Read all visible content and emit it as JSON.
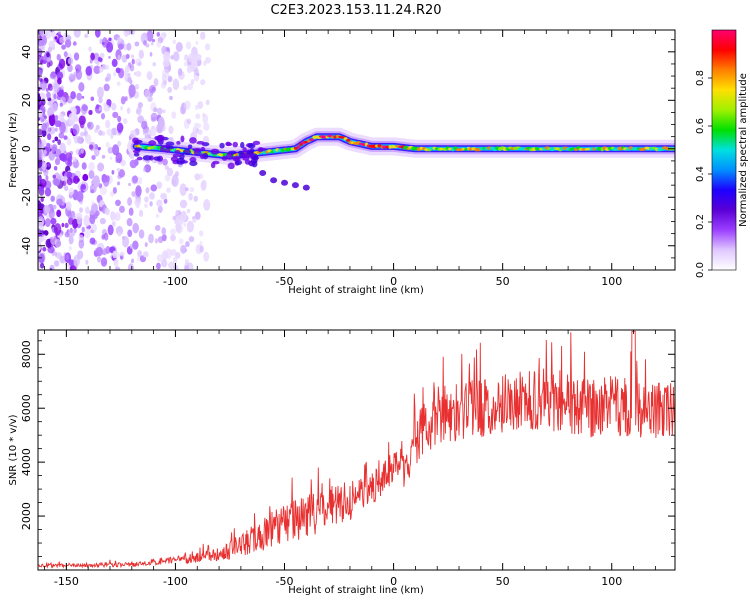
{
  "title": "C2E3.2023.153.11.24.R20",
  "colors": {
    "signal_line": "#e83030",
    "noise_purple": "#7a00e6",
    "background": "#ffffff"
  },
  "chart_data": [
    {
      "type": "heatmap",
      "title": "C2E3.2023.153.11.24.R20",
      "xlabel": "Height of straight line (km)",
      "ylabel": "Frequency (Hz)",
      "xlim": [
        -163,
        129
      ],
      "ylim": [
        -50,
        49
      ],
      "xticks": [
        -150,
        -100,
        -50,
        0,
        50,
        100
      ],
      "xtick_labels": [
        "-150",
        "-100",
        "-50",
        "0",
        "50",
        "100"
      ],
      "yticks": [
        -40,
        -20,
        0,
        20,
        40
      ],
      "ytick_labels": [
        "-40",
        "-20",
        "0",
        "20",
        "40"
      ],
      "ridge": {
        "x": [
          -118,
          -105,
          -95,
          -85,
          -75,
          -65,
          -55,
          -45,
          -40,
          -35,
          -30,
          -25,
          -20,
          -15,
          -10,
          -5,
          0,
          10,
          30,
          60,
          90,
          129
        ],
        "frequency": [
          1,
          0,
          -1,
          -2,
          -3,
          -2,
          -1,
          0,
          3,
          5,
          5,
          5,
          3,
          2,
          1,
          1,
          1,
          0,
          0,
          0,
          0,
          0
        ]
      },
      "side_branch": {
        "x": [
          -65,
          -60,
          -55,
          -50,
          -45,
          -40
        ],
        "frequency": [
          -6,
          -10,
          -13,
          -14,
          -15,
          -16
        ]
      },
      "noise_region_x": [
        -163,
        -85
      ],
      "colorbar": {
        "label": "Normalized spectral amplitude",
        "range": [
          0.0,
          1.0
        ],
        "ticks": [
          0.0,
          0.2,
          0.4,
          0.6,
          0.8
        ],
        "tick_labels": [
          "0.0",
          "0.2",
          "0.4",
          "0.6",
          "0.8"
        ],
        "colormap": [
          "#ffffff",
          "#e0c8ff",
          "#9b40ff",
          "#5a00d6",
          "#1d00ff",
          "#0090ff",
          "#00e0e0",
          "#00e000",
          "#a0f000",
          "#ffe000",
          "#ff8000",
          "#ff0000",
          "#ff0070"
        ]
      }
    },
    {
      "type": "line",
      "xlabel": "Height of straight line (km)",
      "ylabel": "SNR (10 * v/v)",
      "xlim": [
        -163,
        129
      ],
      "ylim": [
        0,
        8900
      ],
      "xticks": [
        -150,
        -100,
        -50,
        0,
        50,
        100
      ],
      "xtick_labels": [
        "-150",
        "-100",
        "-50",
        "0",
        "50",
        "100"
      ],
      "yticks": [
        2000,
        4000,
        6000,
        8000
      ],
      "ytick_labels": [
        "2000",
        "4000",
        "6000",
        "8000"
      ],
      "series": [
        {
          "name": "SNR",
          "envelope_x": [
            -163,
            -120,
            -110,
            -100,
            -90,
            -80,
            -70,
            -60,
            -50,
            -40,
            -30,
            -20,
            -10,
            -5,
            0,
            5,
            8,
            10,
            15,
            20,
            30,
            40,
            50,
            60,
            70,
            80,
            90,
            100,
            110,
            120,
            129
          ],
          "envelope_y": [
            160,
            200,
            300,
            350,
            450,
            600,
            900,
            1300,
            1700,
            2000,
            2200,
            2500,
            3000,
            3400,
            3900,
            3800,
            4300,
            4800,
            5300,
            5700,
            5900,
            6000,
            6200,
            6300,
            6200,
            6100,
            6000,
            6100,
            6000,
            5900,
            6000
          ],
          "spread_x": [
            -163,
            -120,
            -100,
            -80,
            -70,
            -55,
            -40,
            -25,
            -10,
            0,
            10,
            20,
            129
          ],
          "spread_y": [
            60,
            80,
            150,
            250,
            450,
            700,
            800,
            700,
            600,
            600,
            900,
            1100,
            1100
          ]
        }
      ]
    }
  ]
}
